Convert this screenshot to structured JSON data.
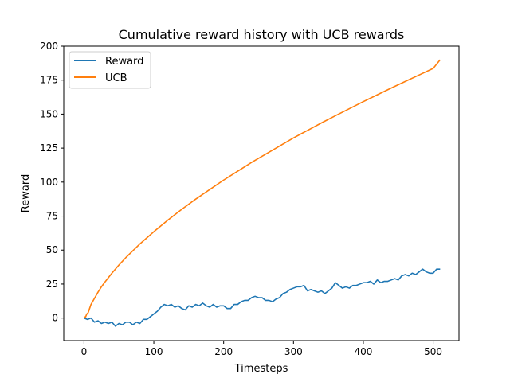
{
  "chart_data": {
    "type": "line",
    "title": "Cumulative reward history with UCB rewards",
    "xlabel": "Timesteps",
    "ylabel": "Reward",
    "xlim": [
      -29,
      537
    ],
    "ylim": [
      -16.6,
      200
    ],
    "xticks": [
      0,
      100,
      200,
      300,
      400,
      500
    ],
    "yticks": [
      0,
      25,
      50,
      75,
      100,
      125,
      150,
      175,
      200
    ],
    "grid": false,
    "legend_position": "top-left",
    "series": [
      {
        "name": "Reward",
        "color": "#1f77b4",
        "x": [
          0,
          5,
          10,
          15,
          20,
          25,
          30,
          35,
          40,
          45,
          50,
          55,
          60,
          65,
          70,
          75,
          80,
          85,
          90,
          95,
          100,
          105,
          110,
          115,
          120,
          125,
          130,
          135,
          140,
          145,
          150,
          155,
          160,
          165,
          170,
          175,
          180,
          185,
          190,
          195,
          200,
          205,
          210,
          215,
          220,
          225,
          230,
          235,
          240,
          245,
          250,
          255,
          260,
          265,
          270,
          275,
          280,
          285,
          290,
          295,
          300,
          305,
          310,
          315,
          320,
          325,
          330,
          335,
          340,
          345,
          350,
          355,
          360,
          365,
          370,
          375,
          380,
          385,
          390,
          395,
          400,
          405,
          410,
          415,
          420,
          425,
          430,
          435,
          440,
          445,
          450,
          455,
          460,
          465,
          470,
          475,
          480,
          485,
          490,
          495,
          500,
          505,
          510
        ],
        "y": [
          0,
          -1,
          0,
          -3,
          -2,
          -4,
          -3,
          -4,
          -3,
          -6,
          -4,
          -5,
          -3,
          -3,
          -5,
          -3,
          -4,
          -1,
          -1,
          1,
          3,
          5,
          8,
          10,
          9,
          10,
          8,
          9,
          7,
          6,
          9,
          8,
          10,
          9,
          11,
          9,
          8,
          10,
          8,
          9,
          9,
          7,
          7,
          10,
          10,
          12,
          13,
          13,
          15,
          16,
          15,
          15,
          13,
          13,
          12,
          14,
          15,
          18,
          19,
          21,
          22,
          23,
          23,
          24,
          20,
          21,
          20,
          19,
          20,
          18,
          20,
          22,
          26,
          24,
          22,
          23,
          22,
          24,
          24,
          25,
          26,
          26,
          27,
          25,
          28,
          26,
          27,
          27,
          28,
          29,
          28,
          31,
          32,
          31,
          33,
          32,
          34,
          36,
          34,
          33,
          33,
          36,
          36
        ]
      },
      {
        "name": "UCB",
        "color": "#ff7f0e",
        "x": [
          0,
          2,
          4,
          6,
          8,
          10,
          15,
          20,
          25,
          30,
          40,
          50,
          60,
          70,
          80,
          90,
          100,
          120,
          140,
          160,
          180,
          200,
          220,
          240,
          260,
          280,
          300,
          320,
          340,
          360,
          380,
          400,
          420,
          440,
          460,
          480,
          500,
          510
        ],
        "y": [
          1,
          0.5,
          3,
          4,
          7,
          10,
          14.5,
          19,
          23,
          26.5,
          33,
          39,
          44.5,
          49.5,
          54.5,
          59,
          63.5,
          72,
          80,
          87.5,
          94.5,
          101.5,
          108,
          114.5,
          120.5,
          126.5,
          132.5,
          138,
          143.5,
          148.8,
          154,
          159.2,
          164.2,
          169.2,
          174,
          178.8,
          183.6,
          190
        ]
      }
    ]
  }
}
